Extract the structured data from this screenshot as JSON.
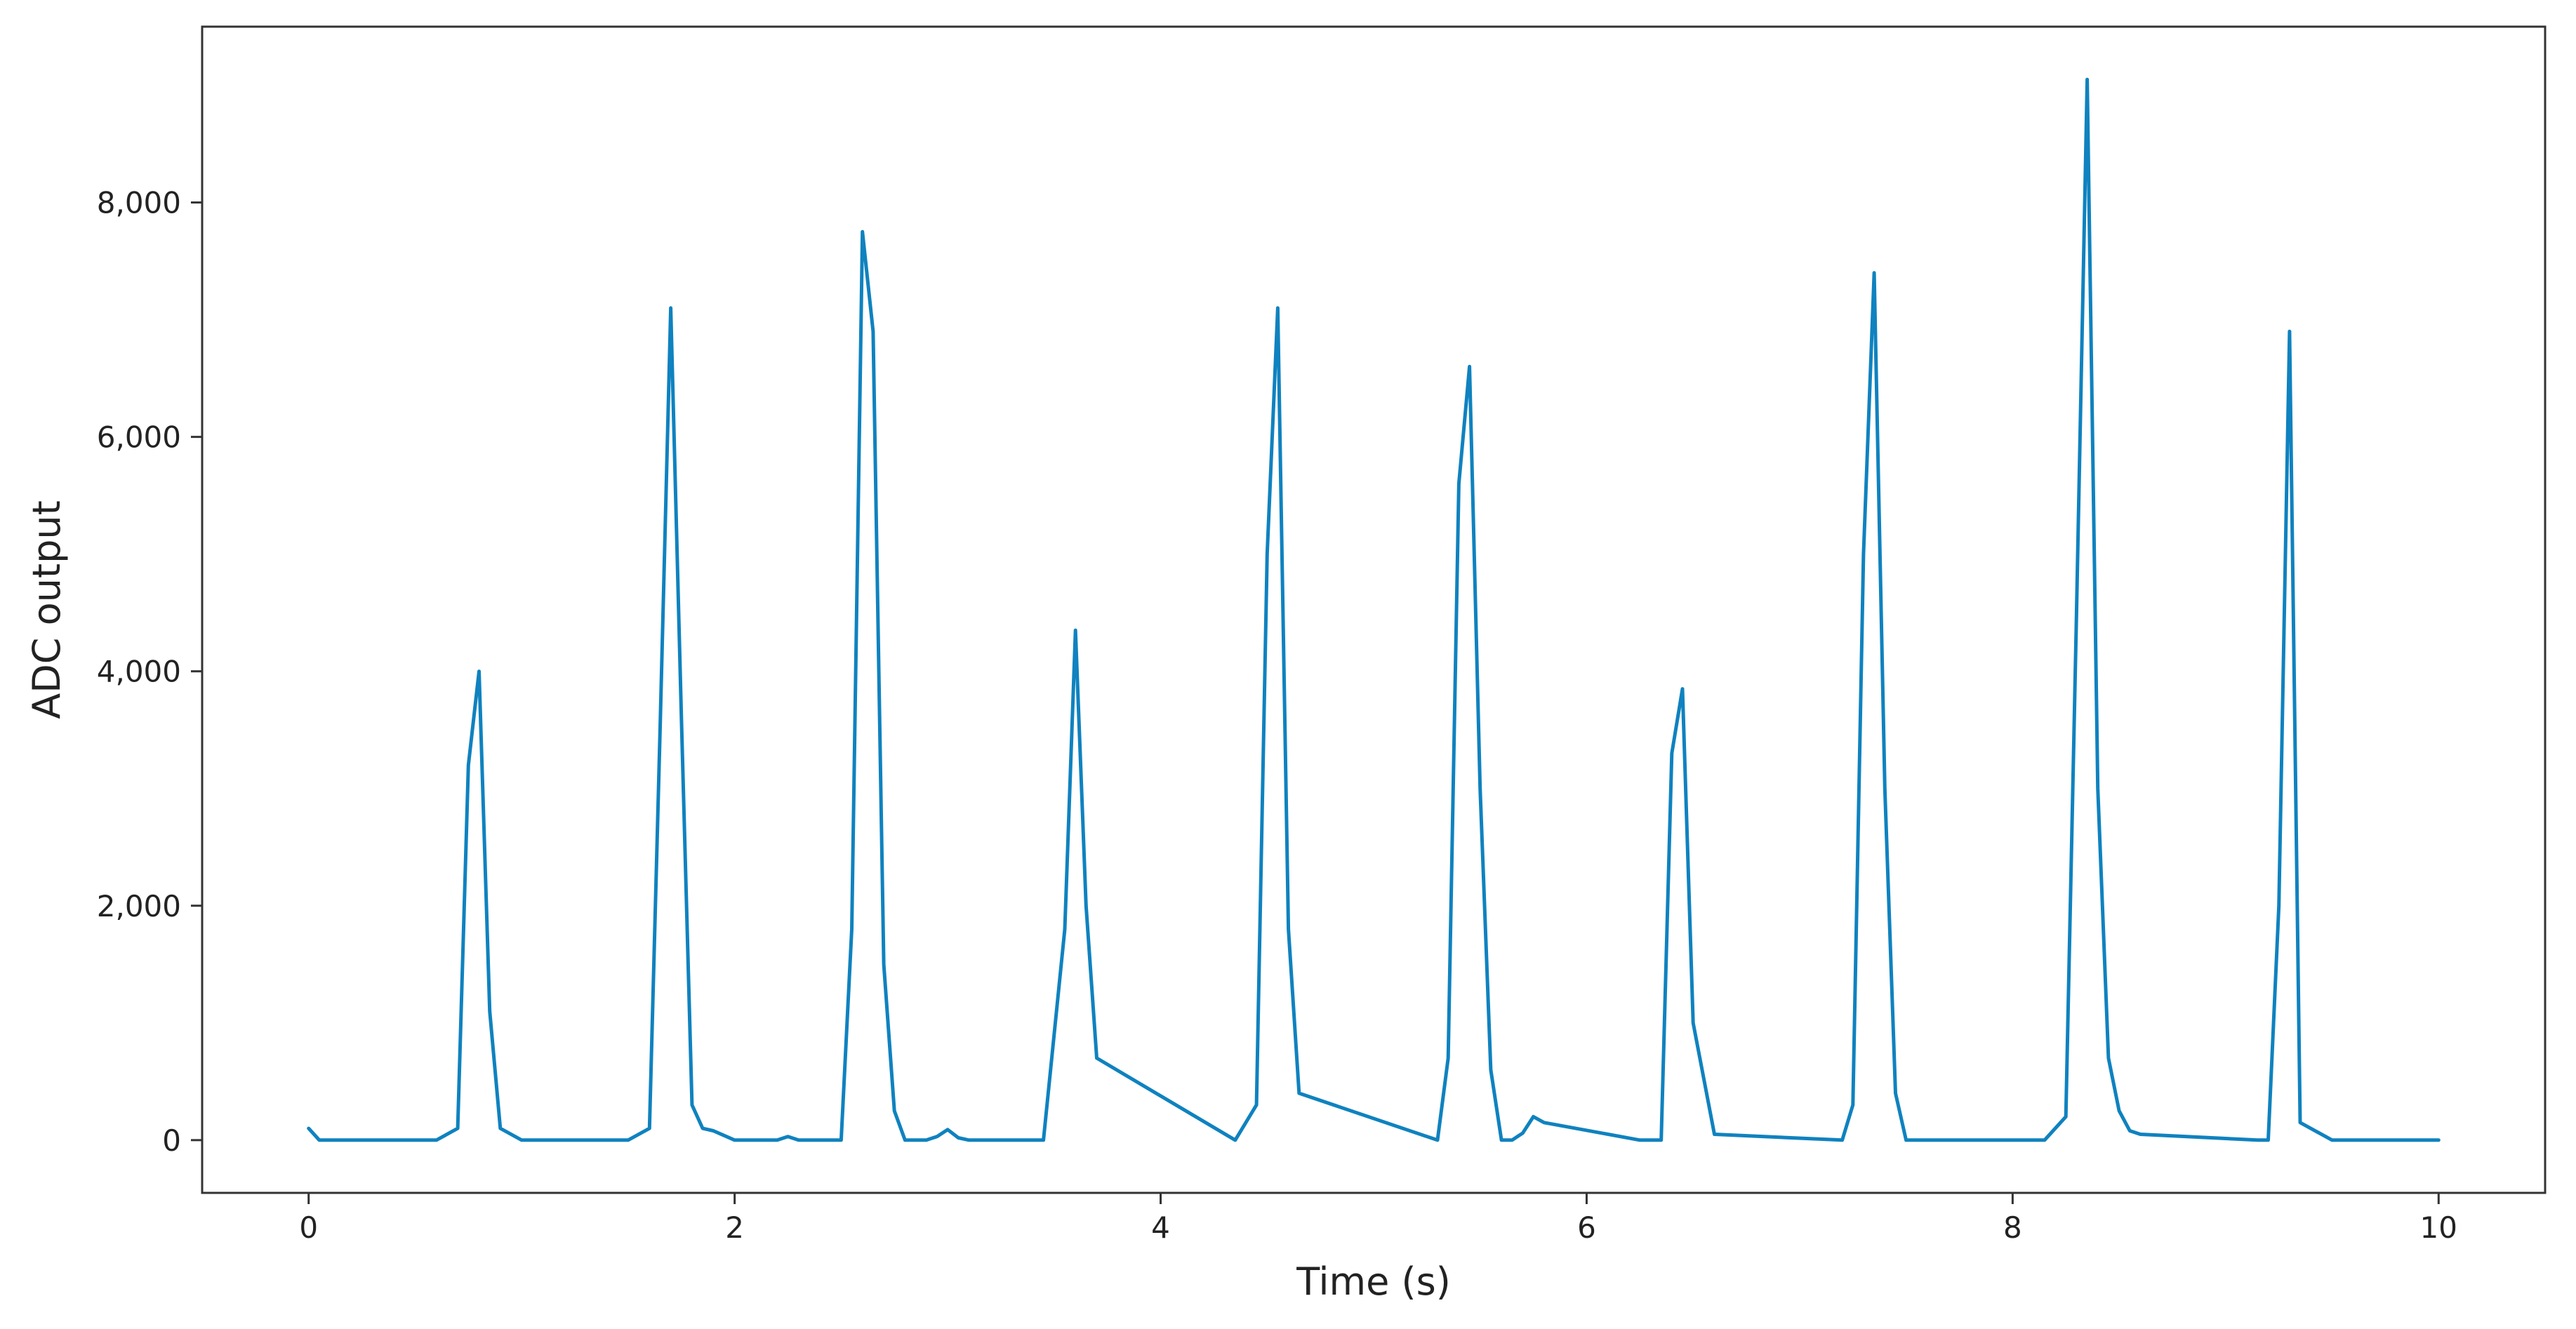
{
  "chart_data": {
    "type": "line",
    "title": "",
    "xlabel": "Time (s)",
    "ylabel": "ADC output",
    "xlim": [
      -0.5,
      10.5
    ],
    "ylim": [
      -450,
      9500
    ],
    "xticks": [
      0,
      2,
      4,
      6,
      8,
      10
    ],
    "xtick_labels": [
      "0",
      "2",
      "4",
      "6",
      "8",
      "10"
    ],
    "yticks": [
      0,
      2000,
      4000,
      6000,
      8000
    ],
    "ytick_labels": [
      "0",
      "2,000",
      "4,000",
      "6,000",
      "8,000"
    ],
    "grid": false,
    "legend": "none",
    "line_color": "#0f82bf",
    "series": [
      {
        "x": [
          0,
          0.05,
          0.1,
          0.6,
          0.7,
          0.75,
          0.8,
          0.85,
          0.9,
          1.0,
          1.5,
          1.6,
          1.65,
          1.7,
          1.75,
          1.8,
          1.85,
          1.9,
          2.0,
          2.2,
          2.25,
          2.3,
          2.5,
          2.55,
          2.6,
          2.65,
          2.7,
          2.75,
          2.8,
          2.9,
          2.95,
          3.0,
          3.05,
          3.1,
          3.45,
          3.55,
          3.6,
          3.65,
          3.7,
          4.35,
          4.45,
          4.5,
          4.55,
          4.6,
          4.65,
          5.3,
          5.35,
          5.4,
          5.45,
          5.5,
          5.55,
          5.6,
          5.65,
          5.7,
          5.75,
          5.8,
          6.25,
          6.35,
          6.4,
          6.45,
          6.5,
          6.6,
          7.2,
          7.25,
          7.3,
          7.35,
          7.4,
          7.45,
          7.5,
          8.15,
          8.25,
          8.3,
          8.35,
          8.4,
          8.45,
          8.5,
          8.55,
          8.6,
          9.15,
          9.2,
          9.25,
          9.3,
          9.35,
          9.5,
          10.0
        ],
        "y": [
          100,
          0,
          0,
          0,
          100,
          3200,
          4000,
          1100,
          100,
          0,
          0,
          100,
          3500,
          7100,
          3600,
          300,
          100,
          80,
          0,
          0,
          30,
          0,
          0,
          1800,
          7750,
          6900,
          1500,
          250,
          0,
          0,
          30,
          90,
          20,
          0,
          0,
          1800,
          4350,
          2000,
          700,
          0,
          300,
          5000,
          7100,
          1800,
          400,
          0,
          700,
          5600,
          6600,
          3000,
          600,
          0,
          0,
          60,
          200,
          150,
          0,
          0,
          3300,
          3850,
          1000,
          50,
          0,
          300,
          5000,
          7400,
          3000,
          400,
          0,
          0,
          200,
          4500,
          9050,
          3000,
          700,
          250,
          80,
          50,
          0,
          0,
          2000,
          6900,
          150,
          0,
          0
        ]
      }
    ]
  }
}
